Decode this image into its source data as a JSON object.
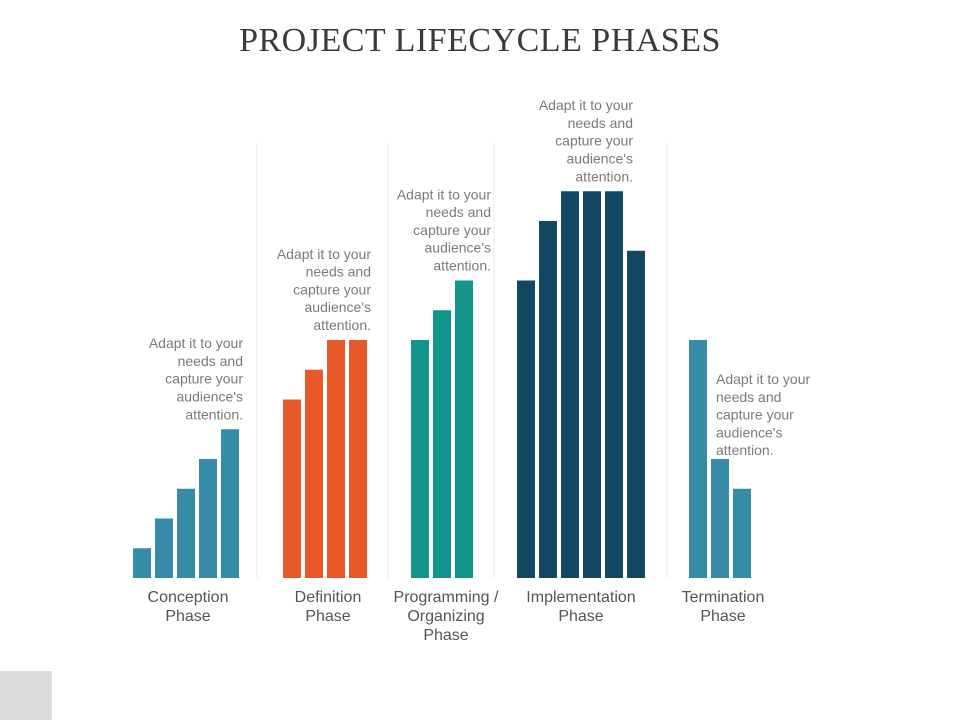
{
  "title": "PROJECT LIFECYCLE PHASES",
  "colors": {
    "conception": "#368ba8",
    "definition": "#e8592a",
    "programming": "#12958c",
    "implementation": "#0f4860",
    "termination": "#368ba8"
  },
  "chart_data": {
    "type": "bar",
    "title": "PROJECT LIFECYCLE PHASES",
    "ylim": [
      0,
      13
    ],
    "grid": false,
    "groups": [
      {
        "id": "conception",
        "label_lines": [
          "Conception",
          "Phase"
        ],
        "values": [
          1,
          2,
          3,
          4,
          5
        ],
        "note_lines": [
          "Adapt it to your",
          "needs and",
          "capture your",
          "audience's",
          "attention."
        ],
        "note_side": "left"
      },
      {
        "id": "definition",
        "label_lines": [
          "Definition",
          "Phase"
        ],
        "values": [
          6,
          7,
          8,
          8
        ],
        "note_lines": [
          "Adapt it to your",
          "needs and",
          "capture your",
          "audience's",
          "attention."
        ],
        "note_side": "left"
      },
      {
        "id": "programming",
        "label_lines": [
          "Programming /",
          "Organizing",
          "Phase"
        ],
        "values": [
          8,
          9,
          10
        ],
        "note_lines": [
          "Adapt it to your",
          "needs and",
          "capture your",
          "audience's",
          "attention."
        ],
        "note_side": "left"
      },
      {
        "id": "implementation",
        "label_lines": [
          "Implementation",
          "Phase"
        ],
        "values": [
          10,
          12,
          13,
          13,
          13,
          11
        ],
        "note_lines": [
          "Adapt it to your",
          "needs and",
          "capture your",
          "audience's",
          "attention."
        ],
        "note_side": "left"
      },
      {
        "id": "termination",
        "label_lines": [
          "Termination",
          "Phase"
        ],
        "values": [
          8,
          4,
          3
        ],
        "note_lines": [
          "Adapt it to your",
          "needs and",
          "capture your",
          "audience's",
          "attention."
        ],
        "note_side": "right"
      }
    ]
  }
}
